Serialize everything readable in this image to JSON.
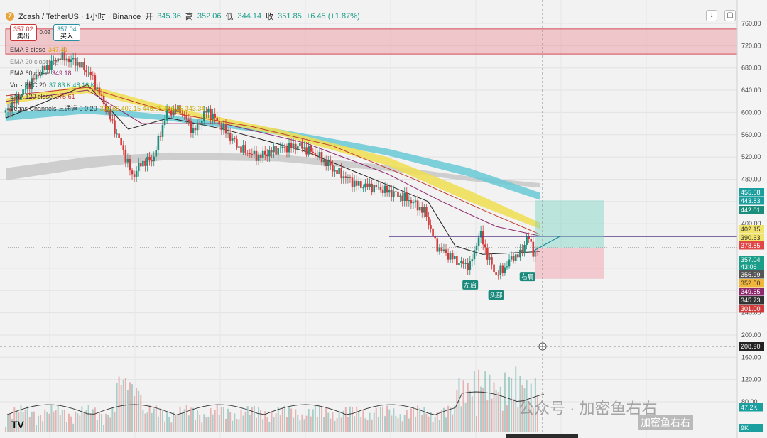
{
  "header": {
    "symbol": "Zcash / TetherUS · 1小时 · Binance",
    "open_label": "开",
    "open": "345.36",
    "high_label": "高",
    "high": "352.06",
    "low_label": "低",
    "low": "344.14",
    "close_label": "收",
    "close": "351.85",
    "change": "+6.45 (+1.87%)"
  },
  "trade": {
    "sell_price": "357.02",
    "sell_label": "卖出",
    "spread": "0.02",
    "buy_price": "357.04",
    "buy_label": "买入"
  },
  "legend": [
    {
      "name": "EMA 5 close",
      "value": "347.41",
      "color": "#e8b400"
    },
    {
      "name": "EMA 20 close",
      "value": "",
      "color": "#555555"
    },
    {
      "name": "EMA 60 close",
      "value": "349.18",
      "color": "#8e2a6e"
    },
    {
      "name": "Vol · ZEC 20",
      "value": "37.83 K  48.13 K",
      "color": "#1a9e8a"
    },
    {
      "name": "EMA 120 close",
      "value": "375.61",
      "color": "#c0392b"
    },
    {
      "name": "Vegas Channels 三通道 0 0 20",
      "value": "396.66  402.15  445.05  456.25  343.34",
      "color": "#333333"
    }
  ],
  "watermark": {
    "main": "公众号 · 加密鱼右右",
    "small": "加密鱼右右"
  },
  "tv_logo": "TV",
  "chart_data": {
    "type": "candlestick",
    "symbol": "ZEC/USDT",
    "interval": "1h",
    "ylim": [
      100,
      770
    ],
    "y_ticks": [
      760,
      720,
      680,
      640,
      600,
      560,
      520,
      480,
      440,
      400,
      360,
      320,
      280,
      240,
      200,
      160,
      120,
      80
    ],
    "price_series": [
      {
        "t": 0,
        "p": 600
      },
      {
        "t": 10,
        "p": 630
      },
      {
        "t": 25,
        "p": 672
      },
      {
        "t": 40,
        "p": 700
      },
      {
        "t": 52,
        "p": 690
      },
      {
        "t": 62,
        "p": 670
      },
      {
        "t": 75,
        "p": 600
      },
      {
        "t": 85,
        "p": 540
      },
      {
        "t": 93,
        "p": 485
      },
      {
        "t": 100,
        "p": 510
      },
      {
        "t": 108,
        "p": 515
      },
      {
        "t": 118,
        "p": 600
      },
      {
        "t": 128,
        "p": 605
      },
      {
        "t": 138,
        "p": 565
      },
      {
        "t": 148,
        "p": 605
      },
      {
        "t": 160,
        "p": 570
      },
      {
        "t": 172,
        "p": 535
      },
      {
        "t": 185,
        "p": 520
      },
      {
        "t": 200,
        "p": 535
      },
      {
        "t": 215,
        "p": 540
      },
      {
        "t": 228,
        "p": 525
      },
      {
        "t": 242,
        "p": 495
      },
      {
        "t": 258,
        "p": 470
      },
      {
        "t": 272,
        "p": 465
      },
      {
        "t": 285,
        "p": 455
      },
      {
        "t": 298,
        "p": 440
      },
      {
        "t": 308,
        "p": 420
      },
      {
        "t": 316,
        "p": 360
      },
      {
        "t": 324,
        "p": 345
      },
      {
        "t": 333,
        "p": 330
      },
      {
        "t": 341,
        "p": 325
      },
      {
        "t": 348,
        "p": 385
      },
      {
        "t": 354,
        "p": 340
      },
      {
        "t": 360,
        "p": 308
      },
      {
        "t": 366,
        "p": 320
      },
      {
        "t": 372,
        "p": 340
      },
      {
        "t": 378,
        "p": 345
      },
      {
        "t": 383,
        "p": 380
      },
      {
        "t": 388,
        "p": 345
      },
      {
        "t": 392,
        "p": 357
      }
    ],
    "ema_lines": [
      {
        "name": "EMA 20",
        "color": "#222222",
        "points": [
          [
            0,
            590
          ],
          [
            60,
            650
          ],
          [
            90,
            570
          ],
          [
            120,
            590
          ],
          [
            160,
            570
          ],
          [
            220,
            530
          ],
          [
            280,
            470
          ],
          [
            310,
            440
          ],
          [
            330,
            360
          ],
          [
            350,
            345
          ],
          [
            392,
            350
          ]
        ]
      },
      {
        "name": "EMA 60",
        "color": "#8e2a6e",
        "points": [
          [
            0,
            620
          ],
          [
            60,
            640
          ],
          [
            100,
            580
          ],
          [
            160,
            580
          ],
          [
            220,
            545
          ],
          [
            280,
            490
          ],
          [
            320,
            440
          ],
          [
            360,
            395
          ],
          [
            392,
            378
          ]
        ]
      },
      {
        "name": "EMA 120",
        "color": "#c0392b",
        "points": [
          [
            0,
            630
          ],
          [
            60,
            645
          ],
          [
            120,
            600
          ],
          [
            180,
            575
          ],
          [
            240,
            540
          ],
          [
            300,
            480
          ],
          [
            350,
            425
          ],
          [
            392,
            381
          ]
        ]
      }
    ],
    "vegas_channels": [
      {
        "name": "Vegas band 1 (yellow)",
        "color": "#f0df50",
        "upper": [
          [
            0,
            625
          ],
          [
            60,
            650
          ],
          [
            120,
            610
          ],
          [
            200,
            570
          ],
          [
            280,
            520
          ],
          [
            340,
            460
          ],
          [
            392,
            402
          ]
        ],
        "lower": [
          [
            0,
            615
          ],
          [
            60,
            635
          ],
          [
            120,
            600
          ],
          [
            200,
            560
          ],
          [
            280,
            505
          ],
          [
            340,
            440
          ],
          [
            392,
            391
          ]
        ]
      },
      {
        "name": "Vegas band 2 (cyan)",
        "color": "#69c9d6",
        "upper": [
          [
            0,
            600
          ],
          [
            60,
            610
          ],
          [
            120,
            595
          ],
          [
            200,
            570
          ],
          [
            280,
            535
          ],
          [
            340,
            500
          ],
          [
            392,
            456
          ]
        ],
        "lower": [
          [
            0,
            585
          ],
          [
            60,
            598
          ],
          [
            120,
            585
          ],
          [
            200,
            560
          ],
          [
            280,
            523
          ],
          [
            340,
            485
          ],
          [
            392,
            443
          ]
        ]
      },
      {
        "name": "Vegas band 3 (gray)",
        "color": "#c8c8c8",
        "upper": [
          [
            0,
            500
          ],
          [
            60,
            520
          ],
          [
            120,
            528
          ],
          [
            200,
            525
          ],
          [
            280,
            505
          ],
          [
            340,
            485
          ],
          [
            392,
            473
          ]
        ],
        "lower": [
          [
            0,
            478
          ],
          [
            60,
            500
          ],
          [
            120,
            515
          ],
          [
            200,
            512
          ],
          [
            280,
            495
          ],
          [
            340,
            477
          ],
          [
            392,
            465
          ]
        ]
      }
    ],
    "resistance_zone": {
      "from": 705,
      "to": 750
    },
    "neckline": 377,
    "long_position": {
      "entry": 357.04,
      "target": 442.01,
      "stop": 301.0
    },
    "crosshair_price": "208.90",
    "pattern_labels": [
      {
        "text": "左肩",
        "t": 341,
        "p": 320
      },
      {
        "text": "头部",
        "t": 360,
        "p": 302
      },
      {
        "text": "右肩",
        "t": 383,
        "p": 335
      }
    ],
    "price_labels": [
      {
        "value": "455.08",
        "bg": "#1a9e9e",
        "fg": "#ffffff"
      },
      {
        "value": "443.83",
        "bg": "#1a9e9e",
        "fg": "#ffffff"
      },
      {
        "value": "442.01",
        "bg": "#1a8e7a",
        "fg": "#ffffff"
      },
      {
        "value": "402.15",
        "bg": "#f2e36a",
        "fg": "#333333"
      },
      {
        "value": "390.63",
        "bg": "#f2e36a",
        "fg": "#333333"
      },
      {
        "value": "378.85",
        "bg": "#e04646",
        "fg": "#ffffff"
      },
      {
        "value": "357.04",
        "bg": "#1a9e8a",
        "fg": "#ffffff"
      },
      {
        "value": "43:06",
        "bg": "#1a9e8a",
        "fg": "#ffffff"
      },
      {
        "value": "356.99",
        "bg": "#555555",
        "fg": "#ffffff"
      },
      {
        "value": "352.50",
        "bg": "#f1b63a",
        "fg": "#333333"
      },
      {
        "value": "349.65",
        "bg": "#8e2a6e",
        "fg": "#ffffff"
      },
      {
        "value": "345.73",
        "bg": "#333333",
        "fg": "#ffffff"
      },
      {
        "value": "301.00",
        "bg": "#d13b3b",
        "fg": "#ffffff"
      }
    ],
    "volume_labels": [
      {
        "value": "47.2K",
        "bg": "#1a9e9e",
        "fg": "#ffffff"
      },
      {
        "value": "9K",
        "bg": "#1a9e9e",
        "fg": "#ffffff"
      }
    ]
  }
}
